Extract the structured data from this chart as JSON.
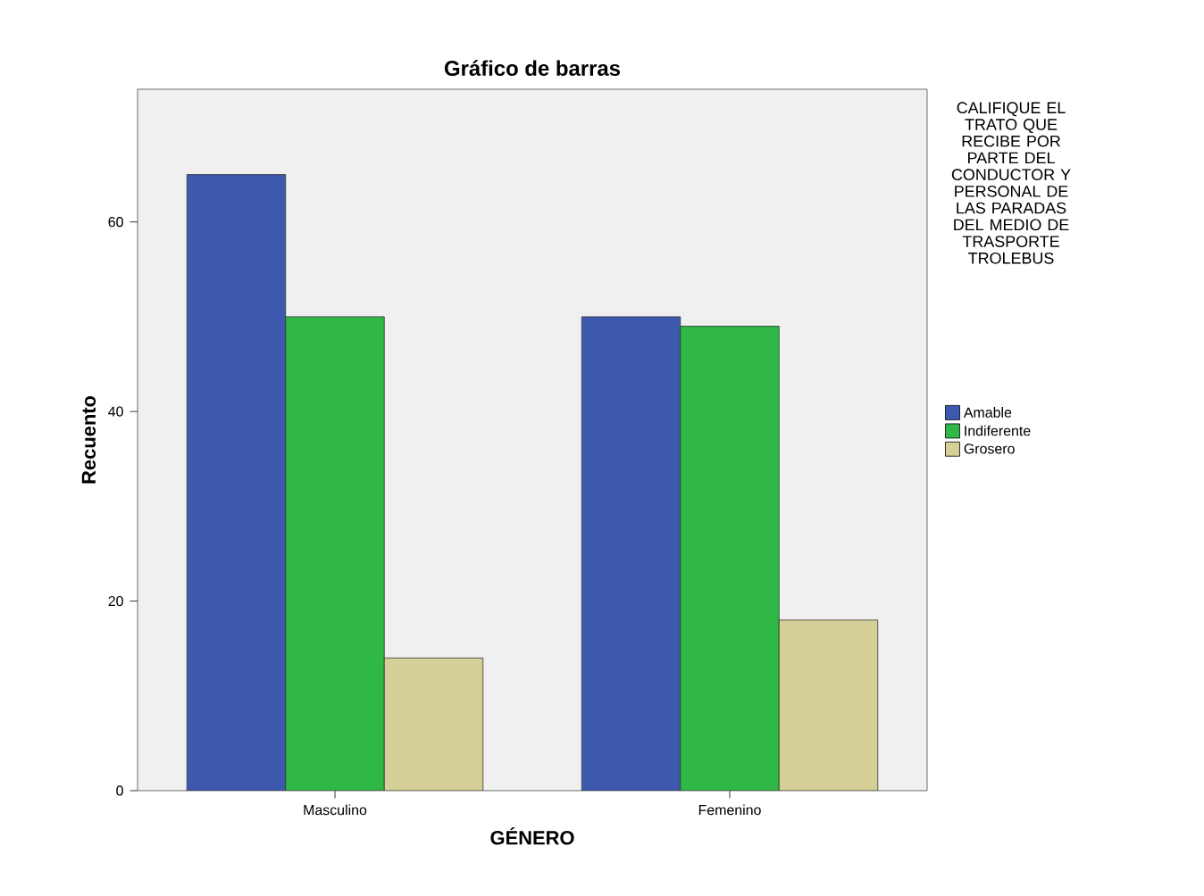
{
  "chart_data": {
    "type": "bar",
    "title": "Gráfico de barras",
    "xlabel": "GÉNERO",
    "ylabel": "Recuento",
    "legend_title": "CALIFIQUE EL TRATO QUE RECIBE POR PARTE DEL CONDUCTOR Y PERSONAL DE LAS PARADAS DEL MEDIO DE TRASPORTE TROLEBUS",
    "categories": [
      "Masculino",
      "Femenino"
    ],
    "series": [
      {
        "name": "Amable",
        "color": "#3c59ad",
        "values": [
          65,
          50
        ]
      },
      {
        "name": "Indiferente",
        "color": "#2fb846",
        "values": [
          50,
          49
        ]
      },
      {
        "name": "Grosero",
        "color": "#d5cf98",
        "values": [
          14,
          18
        ]
      }
    ],
    "ylim": [
      0,
      74
    ],
    "yticks": [
      0,
      20,
      40,
      60
    ],
    "grid": false,
    "legend": "right"
  }
}
